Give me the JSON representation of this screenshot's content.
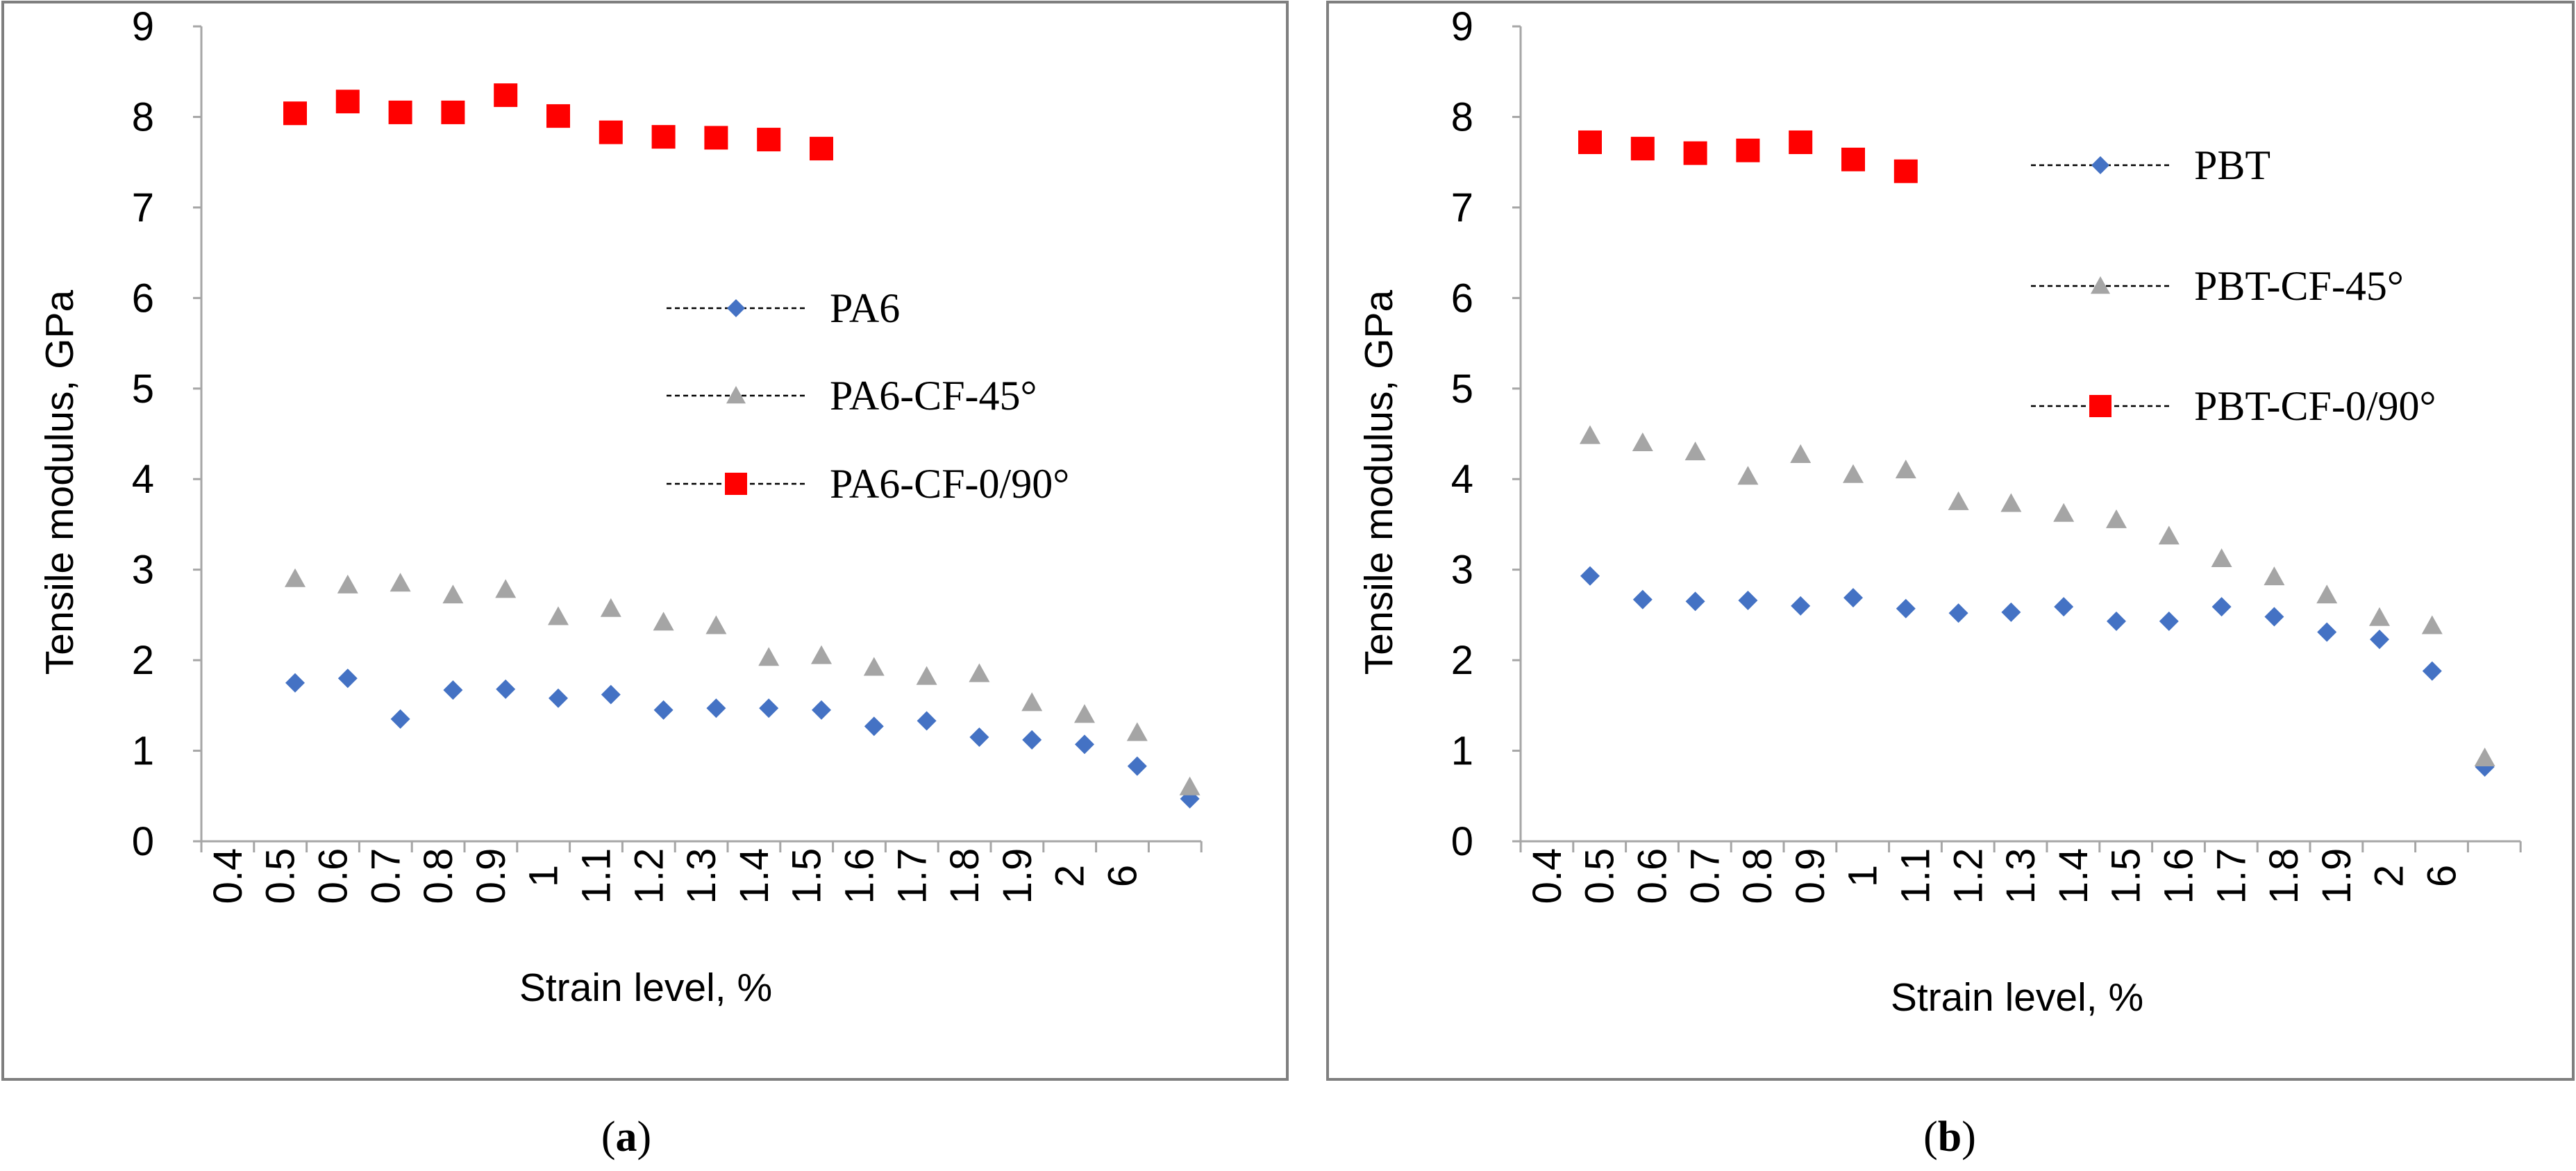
{
  "figure": {
    "caption_a": {
      "open": "(",
      "letter": "a",
      "close": ")"
    },
    "caption_b": {
      "open": "(",
      "letter": "b",
      "close": ")"
    }
  },
  "chart_data": [
    {
      "id": "a",
      "type": "scatter",
      "title": "",
      "xlabel": "Strain level, %",
      "ylabel": "Tensile modulus, GPa",
      "ylim": [
        0,
        9
      ],
      "yticks": [
        "0",
        "1",
        "2",
        "3",
        "4",
        "5",
        "6",
        "7",
        "8",
        "9"
      ],
      "categories": [
        "0.4",
        "0.5",
        "0.6",
        "0.7",
        "0.8",
        "0.9",
        "1",
        "1.1",
        "1.2",
        "1.3",
        "1.4",
        "1.5",
        "1.6",
        "1.7",
        "1.8",
        "1.9",
        "2",
        "6"
      ],
      "grid": false,
      "legend_position": "right",
      "series": [
        {
          "name": "PA6",
          "marker": "diamond",
          "color": "#4472C4",
          "values": [
            1.75,
            1.8,
            1.35,
            1.67,
            1.68,
            1.58,
            1.62,
            1.45,
            1.47,
            1.47,
            1.45,
            1.27,
            1.33,
            1.15,
            1.12,
            1.07,
            0.83,
            0.47
          ]
        },
        {
          "name": "PA6-CF-45°",
          "marker": "triangle",
          "color": "#A5A5A5",
          "values": [
            2.9,
            2.83,
            2.85,
            2.72,
            2.78,
            2.48,
            2.57,
            2.42,
            2.38,
            2.03,
            2.05,
            1.92,
            1.82,
            1.85,
            1.53,
            1.4,
            1.2,
            0.6
          ]
        },
        {
          "name": "PA6-CF-0/90°",
          "marker": "square",
          "color": "#FF0000",
          "values": [
            8.04,
            8.17,
            8.05,
            8.05,
            8.24,
            8.01,
            7.83,
            7.78,
            7.77,
            7.75,
            7.65
          ]
        }
      ]
    },
    {
      "id": "b",
      "type": "scatter",
      "title": "",
      "xlabel": "Strain level, %",
      "ylabel": "Tensile modulus, GPa",
      "ylim": [
        0,
        9
      ],
      "yticks": [
        "0",
        "1",
        "2",
        "3",
        "4",
        "5",
        "6",
        "7",
        "8",
        "9"
      ],
      "categories": [
        "0.4",
        "0.5",
        "0.6",
        "0.7",
        "0.8",
        "0.9",
        "1",
        "1.1",
        "1.2",
        "1.3",
        "1.4",
        "1.5",
        "1.6",
        "1.7",
        "1.8",
        "1.9",
        "2",
        "6"
      ],
      "grid": false,
      "legend_position": "right",
      "series": [
        {
          "name": "PBT",
          "marker": "diamond",
          "color": "#4472C4",
          "values": [
            2.93,
            2.67,
            2.65,
            2.66,
            2.6,
            2.69,
            2.57,
            2.52,
            2.53,
            2.59,
            2.43,
            2.43,
            2.59,
            2.48,
            2.31,
            2.23,
            1.88,
            0.82
          ]
        },
        {
          "name": "PBT-CF-45°",
          "marker": "triangle",
          "color": "#A5A5A5",
          "values": [
            4.48,
            4.4,
            4.3,
            4.03,
            4.27,
            4.05,
            4.1,
            3.75,
            3.73,
            3.62,
            3.55,
            3.37,
            3.12,
            2.92,
            2.72,
            2.47,
            2.38,
            0.92
          ]
        },
        {
          "name": "PBT-CF-0/90°",
          "marker": "square",
          "color": "#FF0000",
          "values": [
            7.72,
            7.65,
            7.6,
            7.63,
            7.72,
            7.53,
            7.4
          ]
        }
      ]
    }
  ]
}
